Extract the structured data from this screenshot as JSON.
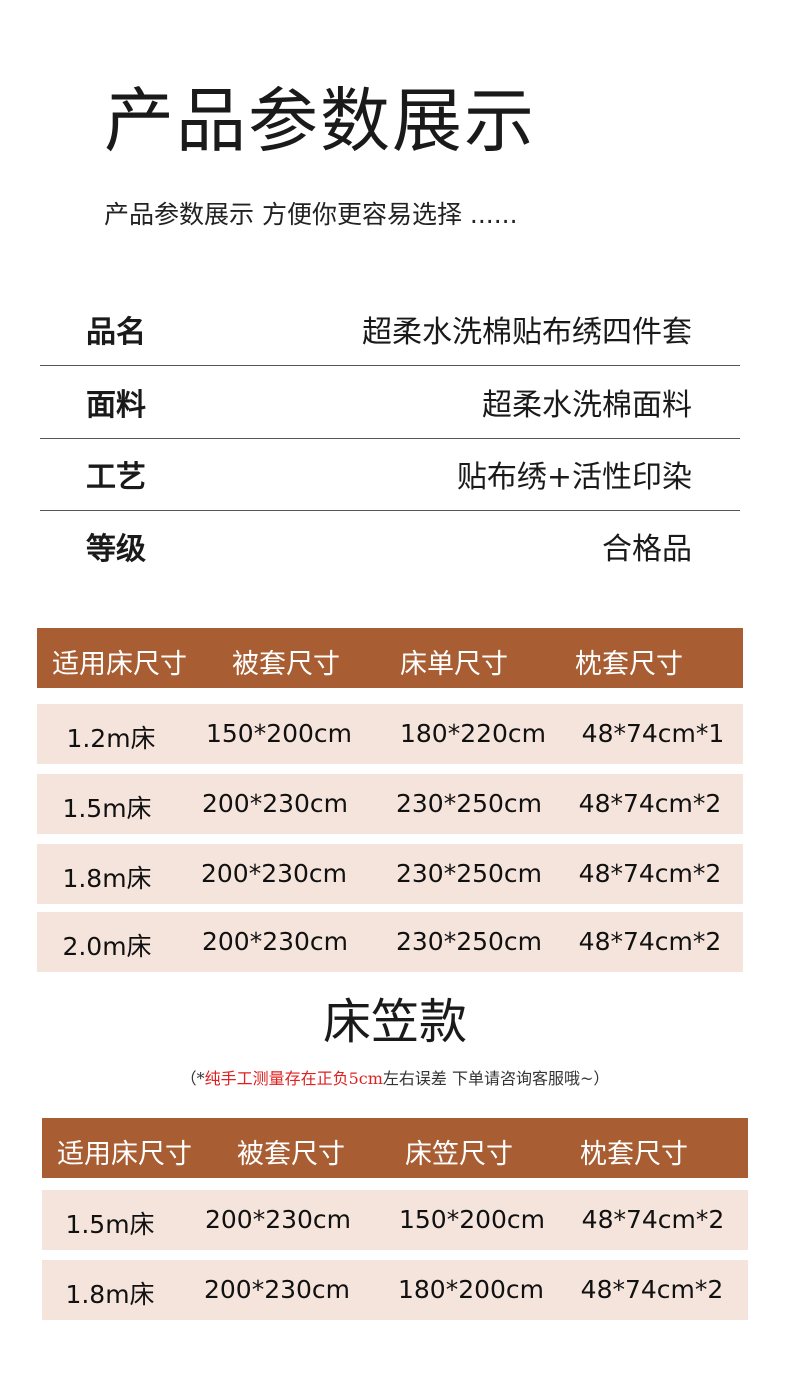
{
  "header": {
    "title": "产品参数展示",
    "subtitle": "产品参数展示 方便你更容易选择 ......"
  },
  "specs": [
    {
      "label": "品名",
      "value": "超柔水洗棉贴布绣四件套"
    },
    {
      "label": "面料",
      "value": "超柔水洗棉面料"
    },
    {
      "label": "工艺",
      "value": "贴布绣+活性印染"
    },
    {
      "label": "等级",
      "value": "合格品"
    }
  ],
  "colors": {
    "header_bg": "#a85e32",
    "row_bg": "#f5e4dc",
    "note_red": "#e02020"
  },
  "table1": {
    "headers": [
      "适用床尺寸",
      "被套尺寸",
      "床单尺寸",
      "枕套尺寸"
    ],
    "rows": [
      [
        "1.2m床",
        "150*200cm",
        "180*220cm",
        "48*74cm*1"
      ],
      [
        "1.5m床",
        "200*230cm",
        "230*250cm",
        "48*74cm*2"
      ],
      [
        "1.8m床",
        "200*230cm",
        "230*250cm",
        "48*74cm*2"
      ],
      [
        "2.0m床",
        "200*230cm",
        "230*250cm",
        "48*74cm*2"
      ]
    ]
  },
  "section2": {
    "title": "床笠款",
    "note_open": "（*",
    "note_red": "纯手工测量存在正负5cm",
    "note_rest": "左右误差 下单请咨询客服哦~）"
  },
  "table2": {
    "headers": [
      "适用床尺寸",
      "被套尺寸",
      "床笠尺寸",
      "枕套尺寸"
    ],
    "rows": [
      [
        "1.5m床",
        "200*230cm",
        "150*200cm",
        "48*74cm*2"
      ],
      [
        "1.8m床",
        "200*230cm",
        "180*200cm",
        "48*74cm*2"
      ]
    ]
  }
}
